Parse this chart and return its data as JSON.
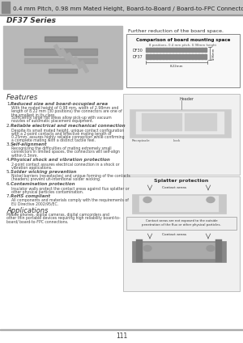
{
  "bg_color": "#f5f5f5",
  "header_bg": "#888888",
  "header_text": "0.4 mm Pitch, 0.98 mm Mated Height, Board-to-Board / Board-to-FPC Connectors",
  "series_title": "DF37 Series",
  "features_title": "Features",
  "features": [
    {
      "title": "Reduced size and board-occupied area",
      "body": "With the mated height of 0.98 mm, width of 2.98mm and\nlength of 8.22 mm (30 positions) the connectors are one of\nthe smallest in its class.\nSufficiently large flat areas allow pick-up with vacuum\nnozzles of automatic placement equipment."
    },
    {
      "title": "Reliable electrical and mechanical connection",
      "body": "Despite its small mated height, unique contact configuration\nwith a 2-point contacts and effective mating length of\n0.25mm, assures highly reliable connection while confirming\na complete mating with a distinct tactile feel."
    },
    {
      "title": "Self-alignment",
      "body": "Recognizing the difficulties of mating extremely small\nconnectors in limited spaces, the connectors will self-align\nwithin 0.3mm."
    },
    {
      "title": "Physical shock and vibration protection",
      "body": "2-point contact assures electrical connection in a shock or\nvibration applications."
    },
    {
      "title": "Solder wicking prevention",
      "body": "Nickel barriers (receptacles) and unique forming of the contacts\n(headers) prevent un-intentional solder wicking."
    },
    {
      "title": "Contamination protection",
      "body": "Insulator walls protect the contact areas against flux splatter or\nother physical particles contamination."
    },
    {
      "title": "RoHS compliant",
      "body": "All components and materials comply with the requirements of\nEU Directive 2002/95/EC."
    }
  ],
  "applications_title": "Applications",
  "applications_body": "Mobile phones, digital cameras, digital camcorders and\nother thin portable devices requiring high reliability board-to-\nboard/ board-to-FPC connections.",
  "further_text": "Further reduction of the board space.",
  "comparison_title": "Comparison of board mounting space",
  "splatter_title": "Splatter protection",
  "contact_areas_text1": "Contact areas",
  "contact_note": "Contact areas are not exposed to the outside\npenetration of the flux or other physical particles.",
  "contact_areas_text2": "Contact areas",
  "page_number": "111",
  "white": "#ffffff",
  "black": "#000000",
  "light_gray": "#e8e8e8",
  "medium_gray": "#aaaaaa",
  "dark_gray": "#666666",
  "text_gray": "#444444",
  "title_color": "#333333",
  "feature_title_color": "#555555",
  "orange_highlight": "#e8a050"
}
